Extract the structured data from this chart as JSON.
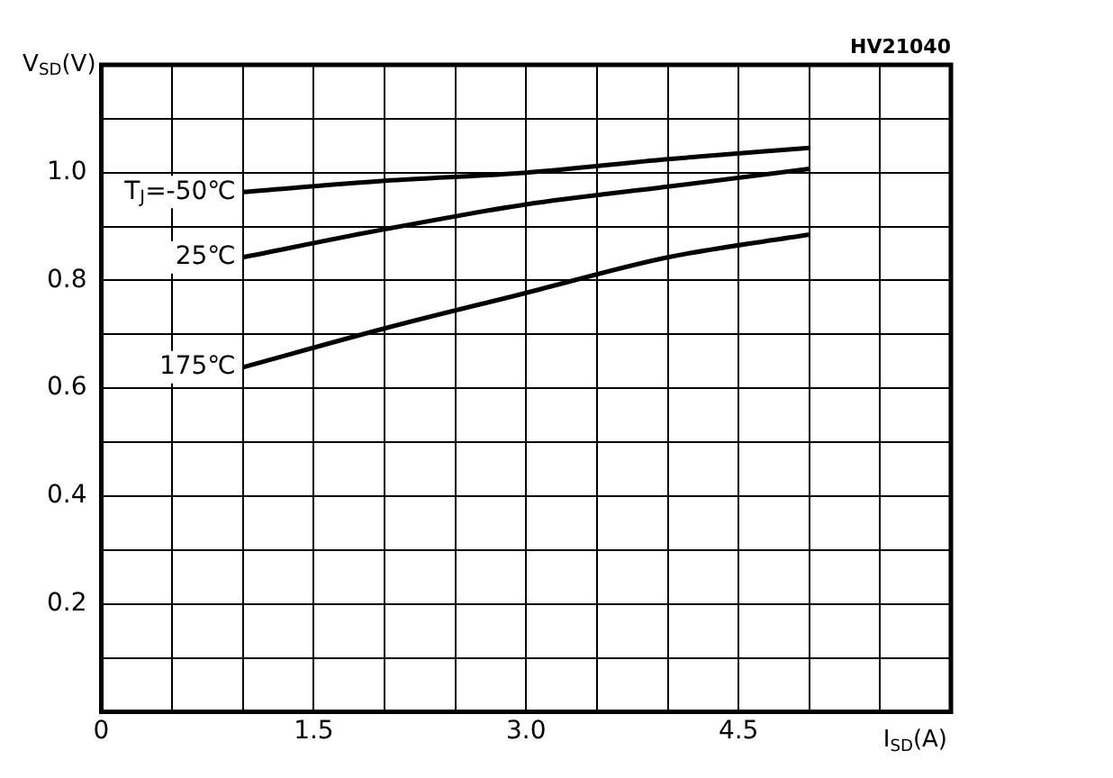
{
  "chart_data": {
    "type": "line",
    "xlabel": "I$_{SD}$(A)",
    "ylabel": "V$_{SD}$(V)",
    "annotations": [
      "HV21040"
    ],
    "x": [
      1.0,
      2.0,
      3.0,
      4.0,
      5.0
    ],
    "series": [
      {
        "name": "T$_{J}$=-50℃",
        "color": "#000000",
        "values": [
          0.964,
          0.985,
          1.0,
          1.025,
          1.046
        ]
      },
      {
        "name": "25℃",
        "color": "#000000",
        "values": [
          0.843,
          0.895,
          0.941,
          0.974,
          1.007
        ]
      },
      {
        "name": "175℃",
        "color": "#000000",
        "values": [
          0.639,
          0.711,
          0.777,
          0.843,
          0.885
        ]
      }
    ],
    "xlim": [
      0,
      6
    ],
    "ylim": [
      0,
      1.2
    ],
    "xticks": [
      0,
      {
        "value": 0.5,
        "label": null
      },
      {
        "value": 1,
        "label": null
      },
      1.5,
      {
        "value": 2,
        "label": null
      },
      {
        "value": 2.5,
        "label": null
      },
      {
        "value": 3,
        "label": "3.0"
      },
      {
        "value": 3.5,
        "label": null
      },
      {
        "value": 4,
        "label": null
      },
      4.5,
      {
        "value": 5,
        "label": null
      },
      {
        "value": 5.5,
        "label": null
      },
      {
        "value": 6,
        "label": null
      }
    ],
    "yticks": [
      {
        "value": 0,
        "label": null
      },
      {
        "value": 0.1,
        "label": null
      },
      0.2,
      {
        "value": 0.3,
        "label": null
      },
      0.4,
      {
        "value": 0.5,
        "label": null
      },
      0.6,
      {
        "value": 0.7,
        "label": null
      },
      0.8,
      {
        "value": 0.9,
        "label": null
      },
      {
        "value": 1,
        "label": "1.0"
      },
      {
        "value": 1.1,
        "label": null
      },
      {
        "value": 1.2,
        "label": null
      }
    ],
    "grid": true,
    "legend": false,
    "marker": "none",
    "line_style": "solid"
  }
}
